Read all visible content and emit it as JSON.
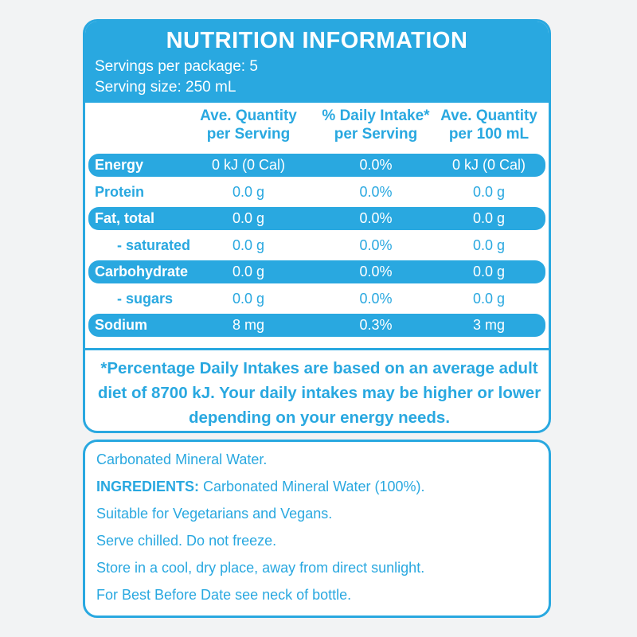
{
  "header": {
    "title": "NUTRITION INFORMATION",
    "servings_per_package": "Servings per package: 5",
    "serving_size": "Serving size: 250 mL"
  },
  "table": {
    "columns": [
      "Ave. Quantity\nper Serving",
      "% Daily Intake*\nper Serving",
      "Ave. Quantity\nper 100 mL"
    ],
    "rows": [
      [
        "Energy",
        "0 kJ (0 Cal)",
        "0.0%",
        "0 kJ (0 Cal)"
      ],
      [
        "Protein",
        "0.0 g",
        "0.0%",
        "0.0 g"
      ],
      [
        "Fat, total",
        "0.0 g",
        "0.0%",
        "0.0 g"
      ],
      [
        "- saturated",
        "0.0 g",
        "0.0%",
        "0.0 g"
      ],
      [
        "Carbohydrate",
        "0.0 g",
        "0.0%",
        "0.0 g"
      ],
      [
        "- sugars",
        "0.0 g",
        "0.0%",
        "0.0 g"
      ],
      [
        "Sodium",
        "8 mg",
        "0.3%",
        "3 mg"
      ]
    ]
  },
  "footnote": "*Percentage Daily Intakes are based on an average adult diet of 8700 kJ. Your daily intakes may be higher or lower depending on your energy needs.",
  "info": {
    "lines": [
      {
        "text": "Carbonated Mineral Water."
      },
      {
        "label": "INGREDIENTS:",
        "text": "Carbonated Mineral Water (100%)."
      },
      {
        "text": "Suitable for Vegetarians and Vegans."
      },
      {
        "text": "Serve chilled. Do not freeze."
      },
      {
        "text": "Store in a cool, dry place, away from direct sunlight."
      },
      {
        "text": "For Best Before Date see neck of bottle."
      }
    ]
  }
}
